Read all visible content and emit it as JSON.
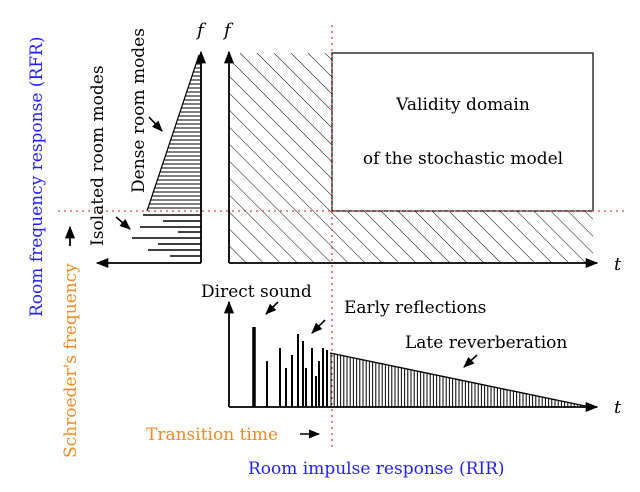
{
  "colors": {
    "ink": "#000000",
    "blue": "#1f1fff",
    "orange": "#f08a22",
    "dotted_red": "#d94a2a"
  },
  "labels": {
    "rfr_title": "Room frequency response (RFR)",
    "schroeder_freq": "Schroeder's frequency",
    "isolated_modes": "Isolated room modes",
    "dense_modes": "Dense room modes",
    "f_axis_left": "f",
    "f_axis_right": "f",
    "t_axis_top": "t",
    "t_axis_bottom": "t",
    "validity_line1": "Validity domain",
    "validity_line2": "of the stochastic model",
    "direct_sound": "Direct sound",
    "early_reflections": "Early reflections",
    "late_reverberation": "Late reverberation",
    "transition_time": "Transition time",
    "rir_title": "Room impulse response (RIR)"
  }
}
